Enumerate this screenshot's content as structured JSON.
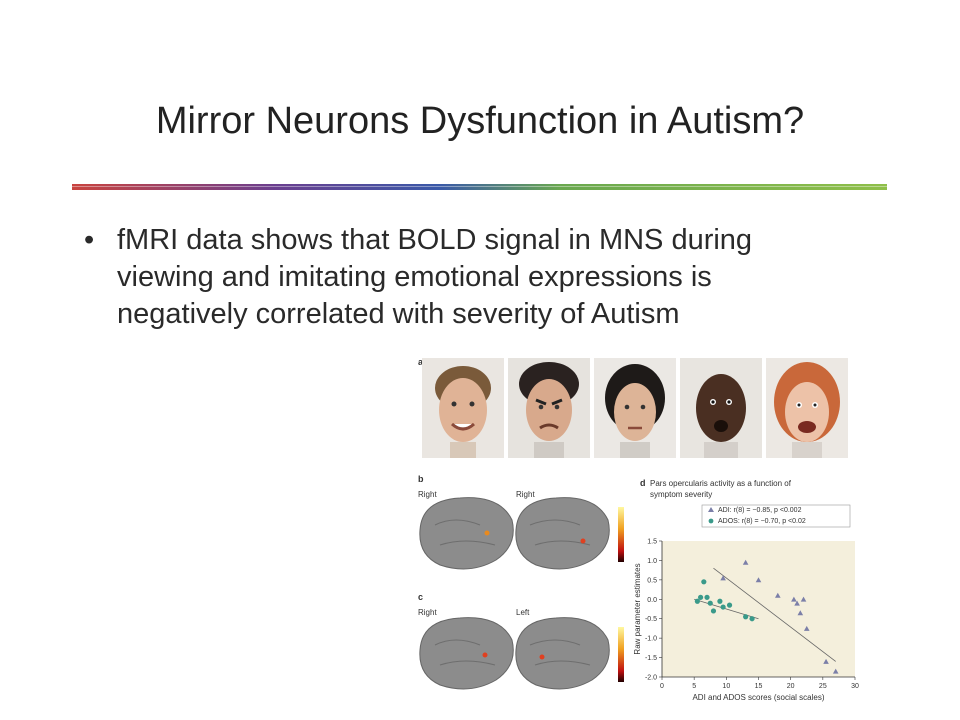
{
  "slide": {
    "title": "Mirror Neurons Dysfunction in Autism?",
    "bullet": "fMRI data shows that BOLD signal in MNS during viewing and imitating emotional expressions is negatively correlated with severity of Autism",
    "bullet_marker": "•"
  },
  "figure": {
    "panel_a": {
      "label": "a",
      "faces": [
        "face-1",
        "face-2",
        "face-3",
        "face-4",
        "face-5"
      ]
    },
    "panel_b": {
      "label": "b",
      "left_label": "Right",
      "right_label": "Right"
    },
    "panel_c": {
      "label": "c",
      "left_label": "Right",
      "right_label": "Left"
    },
    "panel_d": {
      "label": "d",
      "title_line1": "Pars opercularis activity as a function of",
      "title_line2": "symptom severity",
      "legend_adi": "ADI: r(8) = −0.85, p <0.002",
      "legend_ados": "ADOS: r(8) = −0.70, p <0.02"
    }
  },
  "chart_data": {
    "type": "scatter",
    "title": "Pars opercularis activity as a function of symptom severity",
    "xlabel": "ADI and ADOS scores (social scales)",
    "ylabel": "Raw parameter estimates",
    "xlim": [
      0,
      30
    ],
    "ylim": [
      -2.0,
      1.5
    ],
    "xticks": [
      0,
      5,
      10,
      15,
      20,
      25,
      30
    ],
    "yticks": [
      1.5,
      1.0,
      0.5,
      0.0,
      -0.5,
      -1.0,
      -1.5,
      -2.0
    ],
    "series": [
      {
        "name": "ADI: r(8) = −0.85, p <0.002",
        "marker": "triangle",
        "color": "#7b7fa8",
        "points": [
          [
            9.5,
            0.55
          ],
          [
            13,
            0.95
          ],
          [
            15,
            0.5
          ],
          [
            18,
            0.1
          ],
          [
            20.5,
            0.0
          ],
          [
            21,
            -0.1
          ],
          [
            22,
            0.0
          ],
          [
            21.5,
            -0.35
          ],
          [
            22.5,
            -0.75
          ],
          [
            25.5,
            -1.6
          ],
          [
            27,
            -1.85
          ]
        ]
      },
      {
        "name": "ADOS: r(8) = −0.70, p <0.02",
        "marker": "circle",
        "color": "#3a9a8a",
        "points": [
          [
            5.5,
            -0.05
          ],
          [
            6.5,
            0.45
          ],
          [
            6.0,
            0.05
          ],
          [
            7.0,
            0.05
          ],
          [
            7.5,
            -0.1
          ],
          [
            8.0,
            -0.3
          ],
          [
            9.0,
            -0.05
          ],
          [
            9.5,
            -0.2
          ],
          [
            10.5,
            -0.15
          ],
          [
            13.0,
            -0.45
          ],
          [
            14.0,
            -0.5
          ]
        ]
      }
    ],
    "fit_lines": [
      {
        "series": "ADI",
        "from": [
          8,
          0.8
        ],
        "to": [
          27,
          -1.6
        ]
      },
      {
        "series": "ADOS",
        "from": [
          5,
          0.0
        ],
        "to": [
          15,
          -0.5
        ]
      }
    ],
    "grid": false,
    "legend": "top-right"
  }
}
